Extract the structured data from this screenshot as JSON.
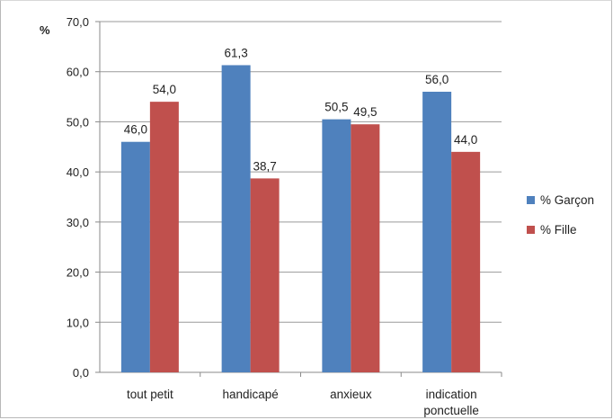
{
  "chart_data": {
    "type": "bar",
    "ylabel": "%",
    "ylim": [
      0,
      70
    ],
    "y_step": 10,
    "y_ticks": [
      "0,0",
      "10,0",
      "20,0",
      "30,0",
      "40,0",
      "50,0",
      "60,0",
      "70,0"
    ],
    "grid": true,
    "legend_position": "right",
    "categories": [
      [
        "tout petit"
      ],
      [
        "handicapé"
      ],
      [
        "anxieux"
      ],
      [
        "indication",
        "ponctuelle"
      ]
    ],
    "series": [
      {
        "name": "% Garçon",
        "color": "#4f81bd",
        "values": [
          46.0,
          61.3,
          50.5,
          56.0
        ],
        "labels": [
          "46,0",
          "61,3",
          "50,5",
          "56,0"
        ]
      },
      {
        "name": "% Fille",
        "color": "#c0504d",
        "values": [
          54.0,
          38.7,
          49.5,
          44.0
        ],
        "labels": [
          "54,0",
          "38,7",
          "49,5",
          "44,0"
        ]
      }
    ]
  }
}
